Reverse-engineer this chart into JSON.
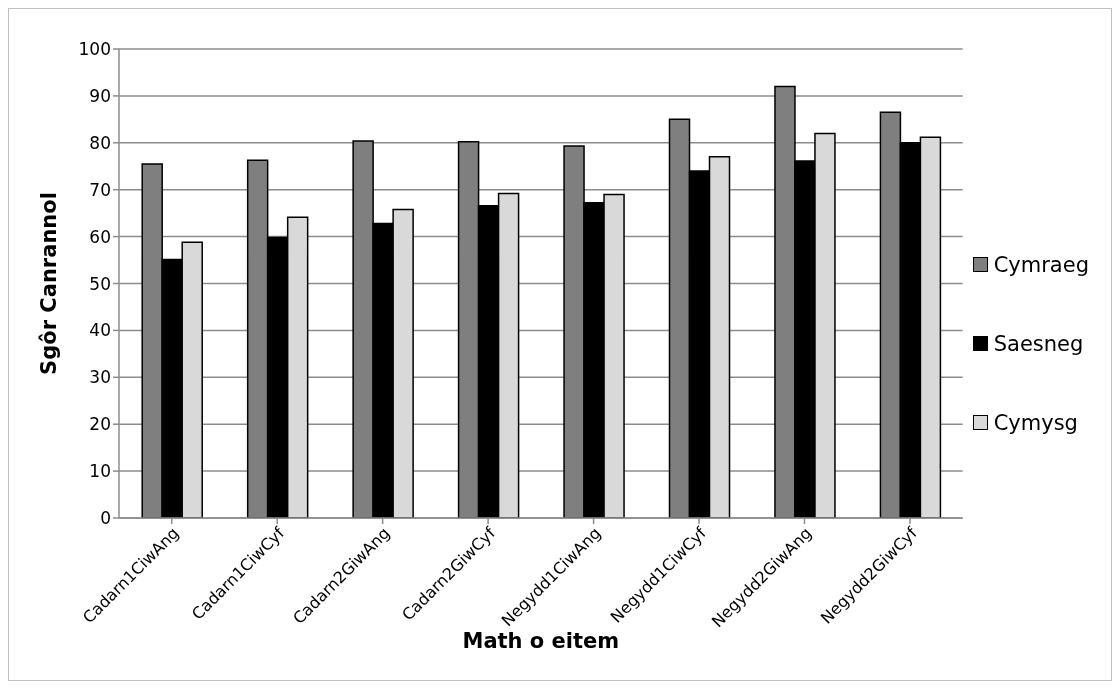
{
  "chart_data": {
    "type": "bar",
    "xlabel": "Math o eitem",
    "ylabel": "Sgôr Canrannol",
    "categories": [
      "Cadarn1CiwAng",
      "Cadarn1CiwCyf",
      "Cadarn2GiwAng",
      "Cadarn2GiwCyf",
      "Negydd1CiwAng",
      "Negydd1CiwCyf",
      "Negydd2GiwAng",
      "Negydd2GiwCyf"
    ],
    "series": [
      {
        "name": "Cymraeg",
        "color": "#7f7f7f",
        "values": [
          75.5,
          76.3,
          80.4,
          80.2,
          79.3,
          85,
          92,
          86.5
        ]
      },
      {
        "name": "Saesneg",
        "color": "#000000",
        "values": [
          55.1,
          59.8,
          62.8,
          66.6,
          67.2,
          74,
          76.1,
          80
        ]
      },
      {
        "name": "Cymysg",
        "color": "#d9d9d9",
        "values": [
          58.8,
          64.1,
          65.8,
          69.2,
          69,
          77,
          82,
          81.2
        ]
      }
    ],
    "ylim": [
      0,
      100
    ],
    "yticks": [
      0,
      10,
      20,
      30,
      40,
      50,
      60,
      70,
      80,
      90,
      100
    ],
    "grid": "y",
    "legend": "right"
  }
}
